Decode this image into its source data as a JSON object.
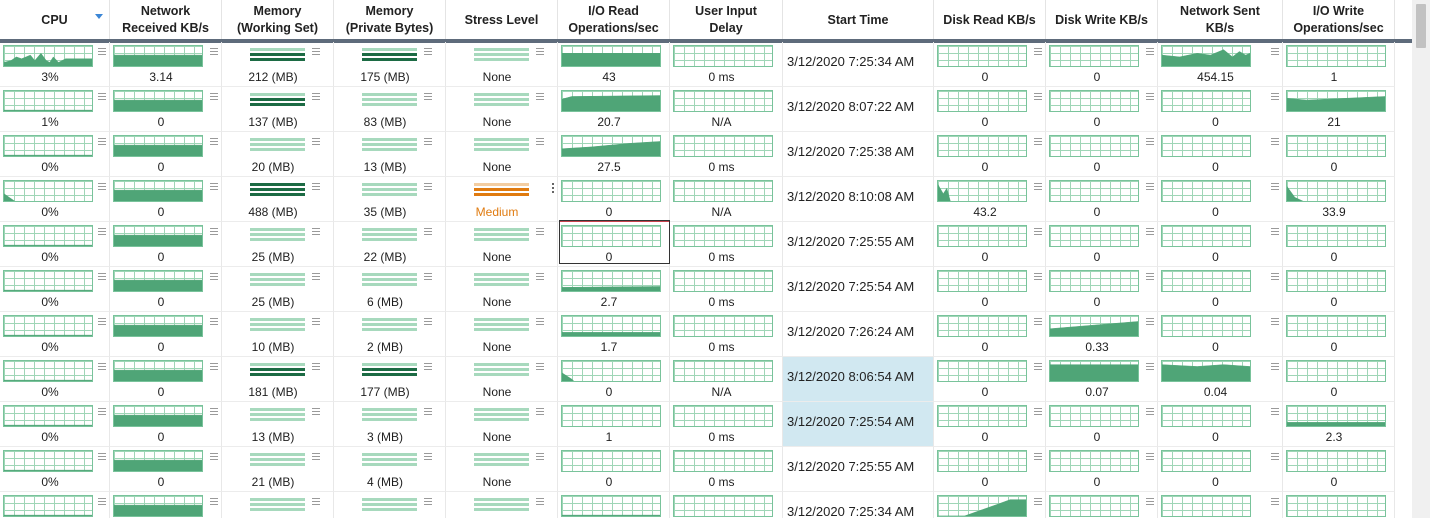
{
  "columns": [
    {
      "key": "cpu",
      "label": "CPU",
      "sorted": true
    },
    {
      "key": "net_recv",
      "label": "Network\nReceived KB/s"
    },
    {
      "key": "mem_ws",
      "label": "Memory\n(Working Set)"
    },
    {
      "key": "mem_pb",
      "label": "Memory\n(Private Bytes)"
    },
    {
      "key": "stress",
      "label": "Stress Level"
    },
    {
      "key": "io_read",
      "label": "I/O Read\nOperations/sec"
    },
    {
      "key": "input_delay",
      "label": "User Input\nDelay"
    },
    {
      "key": "start",
      "label": "Start Time"
    },
    {
      "key": "disk_read",
      "label": "Disk Read KB/s"
    },
    {
      "key": "disk_write",
      "label": "Disk Write KB/s"
    },
    {
      "key": "net_sent",
      "label": "Network Sent\nKB/s"
    },
    {
      "key": "io_write",
      "label": "I/O Write\nOperations/sec"
    }
  ],
  "rows": [
    {
      "cpu": "3%",
      "net_recv": "3.14",
      "mem_ws": "212 (MB)",
      "mem_pb": "175 (MB)",
      "stress": "None",
      "io_read": "43",
      "input_delay": "0 ms",
      "start": "3/12/2020 7:25:34 AM",
      "disk_read": "0",
      "disk_write": "0",
      "net_sent": "454.15",
      "io_write": "1"
    },
    {
      "cpu": "1%",
      "net_recv": "0",
      "mem_ws": "137 (MB)",
      "mem_pb": "83 (MB)",
      "stress": "None",
      "io_read": "20.7",
      "input_delay": "N/A",
      "start": "3/12/2020 8:07:22 AM",
      "disk_read": "0",
      "disk_write": "0",
      "net_sent": "0",
      "io_write": "21"
    },
    {
      "cpu": "0%",
      "net_recv": "0",
      "mem_ws": "20 (MB)",
      "mem_pb": "13 (MB)",
      "stress": "None",
      "io_read": "27.5",
      "input_delay": "0 ms",
      "start": "3/12/2020 7:25:38 AM",
      "disk_read": "0",
      "disk_write": "0",
      "net_sent": "0",
      "io_write": "0"
    },
    {
      "cpu": "0%",
      "net_recv": "0",
      "mem_ws": "488 (MB)",
      "mem_pb": "35 (MB)",
      "stress": "Medium",
      "io_read": "0",
      "input_delay": "N/A",
      "start": "3/12/2020 8:10:08 AM",
      "disk_read": "43.2",
      "disk_write": "0",
      "net_sent": "0",
      "io_write": "33.9"
    },
    {
      "cpu": "0%",
      "net_recv": "0",
      "mem_ws": "25 (MB)",
      "mem_pb": "22 (MB)",
      "stress": "None",
      "io_read": "0",
      "input_delay": "0 ms",
      "start": "3/12/2020 7:25:55 AM",
      "disk_read": "0",
      "disk_write": "0",
      "net_sent": "0",
      "io_write": "0"
    },
    {
      "cpu": "0%",
      "net_recv": "0",
      "mem_ws": "25 (MB)",
      "mem_pb": "6 (MB)",
      "stress": "None",
      "io_read": "2.7",
      "input_delay": "0 ms",
      "start": "3/12/2020 7:25:54 AM",
      "disk_read": "0",
      "disk_write": "0",
      "net_sent": "0",
      "io_write": "0"
    },
    {
      "cpu": "0%",
      "net_recv": "0",
      "mem_ws": "10 (MB)",
      "mem_pb": "2 (MB)",
      "stress": "None",
      "io_read": "1.7",
      "input_delay": "0 ms",
      "start": "3/12/2020 7:26:24 AM",
      "disk_read": "0",
      "disk_write": "0.33",
      "net_sent": "0",
      "io_write": "0"
    },
    {
      "cpu": "0%",
      "net_recv": "0",
      "mem_ws": "181 (MB)",
      "mem_pb": "177 (MB)",
      "stress": "None",
      "io_read": "0",
      "input_delay": "N/A",
      "start": "3/12/2020 8:06:54 AM",
      "disk_read": "0",
      "disk_write": "0.07",
      "net_sent": "0.04",
      "io_write": "0"
    },
    {
      "cpu": "0%",
      "net_recv": "0",
      "mem_ws": "13 (MB)",
      "mem_pb": "3 (MB)",
      "stress": "None",
      "io_read": "1",
      "input_delay": "0 ms",
      "start": "3/12/2020 7:25:54 AM",
      "disk_read": "0",
      "disk_write": "0",
      "net_sent": "0",
      "io_write": "2.3"
    },
    {
      "cpu": "0%",
      "net_recv": "0",
      "mem_ws": "21 (MB)",
      "mem_pb": "4 (MB)",
      "stress": "None",
      "io_read": "0",
      "input_delay": "0 ms",
      "start": "3/12/2020 7:25:55 AM",
      "disk_read": "0",
      "disk_write": "0",
      "net_sent": "0",
      "io_write": "0"
    },
    {
      "cpu": "",
      "net_recv": "",
      "mem_ws": "",
      "mem_pb": "",
      "stress": "",
      "io_read": "",
      "input_delay": "",
      "start": "3/12/2020 7:25:34 AM",
      "disk_read": "",
      "disk_write": "",
      "net_sent": "",
      "io_write": ""
    }
  ],
  "selection": {
    "row": 3,
    "column": "stress",
    "start_time_highlight_rows": [
      7,
      8
    ]
  },
  "focus_cell": {
    "row": 4,
    "column": "io_read"
  },
  "colors": {
    "graph_fill": "#4fa577",
    "graph_border": "#79c39b",
    "graph_grid": "#9fd6b7",
    "bar_dark": "#1c6b44",
    "bar_light": "#a7d9bd",
    "stress_medium": "#e07b10",
    "stress_medium_light": "#f3cda1",
    "header_bar": "#5e6b7b",
    "start_selected_bg": "#d1e8f1"
  },
  "icons": [
    "sort-descending-icon",
    "column-menu-icon",
    "vertical-menu-icon"
  ]
}
